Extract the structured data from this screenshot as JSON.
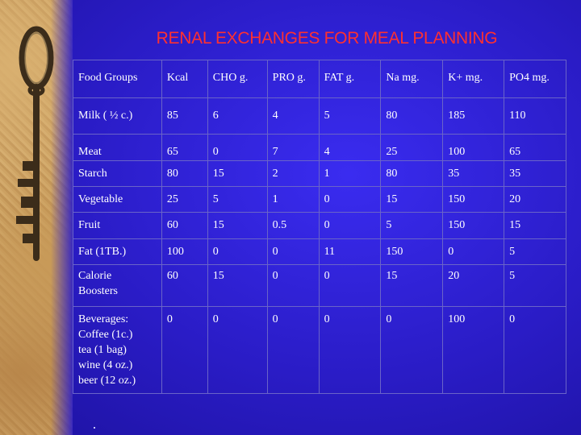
{
  "title": "RENAL EXCHANGES FOR MEAL PLANNING",
  "table": {
    "headers": [
      "Food Groups",
      "Kcal",
      "CHO g.",
      "PRO g.",
      "FAT g.",
      "Na mg.",
      "K+ mg.",
      "PO4 mg."
    ],
    "rows": [
      {
        "name": [
          "Milk ( ½ c.)"
        ],
        "values": [
          "85",
          "6",
          "4",
          "5",
          "80",
          "185",
          "110"
        ]
      },
      {
        "name": [
          "Meat"
        ],
        "values": [
          "65",
          "0",
          "7",
          "4",
          "25",
          "100",
          "65"
        ]
      },
      {
        "name": [
          "Starch"
        ],
        "values": [
          "80",
          "15",
          "2",
          "1",
          "80",
          "35",
          "35"
        ]
      },
      {
        "name": [
          "Vegetable"
        ],
        "values": [
          "25",
          "5",
          "1",
          "0",
          "15",
          "150",
          "20"
        ]
      },
      {
        "name": [
          "Fruit"
        ],
        "values": [
          "60",
          "15",
          "0.5",
          "0",
          "5",
          "150",
          "15"
        ]
      },
      {
        "name": [
          "Fat (1TB.)"
        ],
        "values": [
          "100",
          "0",
          "0",
          "11",
          "150",
          "0",
          "5"
        ]
      },
      {
        "name": [
          "Calorie",
          "Boosters"
        ],
        "values": [
          "60",
          "15",
          "0",
          "0",
          "15",
          "20",
          "5"
        ]
      },
      {
        "name": [
          "Beverages:",
          "Coffee (1c.)",
          "tea  (1 bag)",
          "wine (4 oz.)",
          "beer  (12 oz.)"
        ],
        "values": [
          "0",
          "0",
          "0",
          "0",
          "0",
          "100",
          "0"
        ]
      }
    ]
  },
  "colors": {
    "background": "#2c1ec8",
    "title": "#ff3030",
    "text": "#ffffff",
    "grid": "#6a64c8"
  },
  "decoration": {
    "image": "skeleton-key-on-sand"
  }
}
